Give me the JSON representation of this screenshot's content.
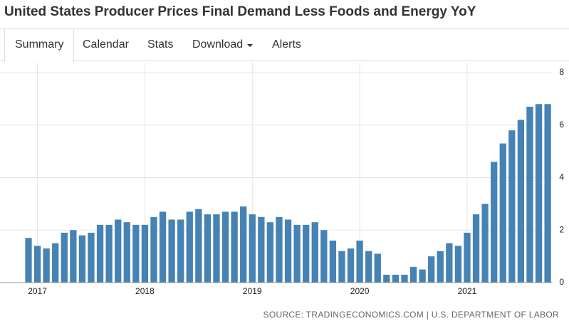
{
  "chart_data": {
    "type": "bar",
    "title": "United States Producer Prices Final Demand Less Foods and Energy YoY",
    "tabs": [
      "Summary",
      "Calendar",
      "Stats",
      "Download",
      "Alerts"
    ],
    "source": "SOURCE: TRADINGECONOMICS.COM | U.S. DEPARTMENT OF LABOR",
    "categories": [
      null,
      "2017",
      null,
      null,
      null,
      null,
      null,
      null,
      null,
      null,
      null,
      null,
      null,
      "2018",
      null,
      null,
      null,
      null,
      null,
      null,
      null,
      null,
      null,
      null,
      null,
      "2019",
      null,
      null,
      null,
      null,
      null,
      null,
      null,
      null,
      null,
      null,
      null,
      "2020",
      null,
      null,
      null,
      null,
      null,
      null,
      null,
      null,
      null,
      null,
      null,
      "2021",
      null,
      null,
      null,
      null,
      null,
      null,
      null,
      null,
      null
    ],
    "values": [
      1.7,
      1.4,
      1.3,
      1.5,
      1.9,
      2.0,
      1.8,
      1.9,
      2.2,
      2.2,
      2.4,
      2.3,
      2.2,
      2.2,
      2.5,
      2.7,
      2.4,
      2.4,
      2.7,
      2.8,
      2.6,
      2.6,
      2.7,
      2.7,
      2.9,
      2.6,
      2.5,
      2.3,
      2.5,
      2.4,
      2.2,
      2.2,
      2.3,
      2.0,
      1.6,
      1.2,
      1.3,
      1.6,
      1.2,
      1.1,
      0.3,
      0.3,
      0.3,
      0.6,
      0.5,
      1.0,
      1.2,
      1.5,
      1.4,
      1.9,
      2.6,
      3.0,
      4.6,
      5.3,
      5.8,
      6.2,
      6.7,
      6.8,
      6.8
    ],
    "color": "#4682b4",
    "ylim": [
      0,
      8
    ],
    "yticks": [
      0,
      2,
      4,
      6,
      8
    ],
    "grid": true
  }
}
